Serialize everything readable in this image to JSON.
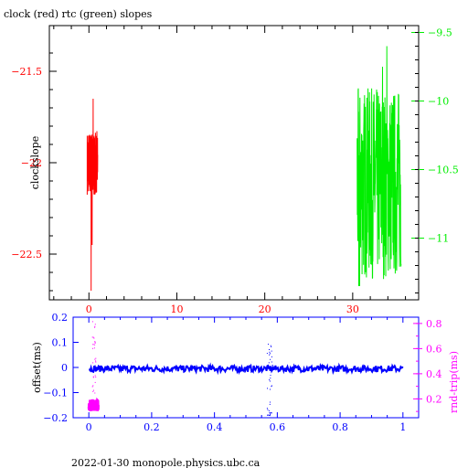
{
  "title": "clock (red) rtc (green) slopes",
  "footer": "2022-01-30  monopole.physics.ubc.ca",
  "colors": {
    "red": "#ff0000",
    "green": "#00ee00",
    "blue": "#0000ff",
    "magenta": "#ff00ff",
    "black": "#000000"
  },
  "chart_data": [
    {
      "type": "line",
      "title": "clock (red) rtc (green) slopes",
      "ylabel": "clockslope",
      "xlim": [
        -4.5,
        37.5
      ],
      "xticks": [
        0,
        10,
        20,
        30
      ],
      "ylim_left": [
        -22.75,
        -21.25
      ],
      "yticks_left": [
        -21.5,
        -22,
        -22.5
      ],
      "ylim_right": [
        -11.45,
        -9.45
      ],
      "yticks_right": [
        -9.5,
        -10,
        -10.5,
        -11
      ],
      "grid": false,
      "series": [
        {
          "name": "clock",
          "color": "red",
          "axis": "left",
          "x_range": [
            -0.2,
            1.0
          ],
          "y_range": [
            -22.7,
            -21.65
          ],
          "y_center": -22.0
        },
        {
          "name": "rtc",
          "color": "green",
          "axis": "right",
          "x_range": [
            30.5,
            35.5
          ],
          "y_range": [
            -11.35,
            -9.6
          ],
          "y_center": -10.6
        }
      ]
    },
    {
      "type": "scatter",
      "xlim": [
        -0.05,
        1.05
      ],
      "xticks": [
        0,
        0.2,
        0.4,
        0.6,
        0.8,
        1
      ],
      "ylabel_left": "offset(ms)",
      "ylim_left": [
        -0.2,
        0.2
      ],
      "yticks_left": [
        0.2,
        0.1,
        0,
        -0.1,
        -0.2
      ],
      "ylabel_right": "rnd-trip(ms)",
      "ylim_right": [
        0.05,
        0.85
      ],
      "yticks_right": [
        0.8,
        0.6,
        0.4,
        0.2
      ],
      "series": [
        {
          "name": "offset",
          "color": "blue",
          "axis": "left",
          "x_range": [
            0,
            1
          ],
          "y_center": -0.005
        },
        {
          "name": "rnd-trip",
          "color": "magenta",
          "axis": "right",
          "x_range": [
            0,
            0.03
          ],
          "y_center": 0.15
        }
      ],
      "glitch_x": 0.575
    }
  ]
}
